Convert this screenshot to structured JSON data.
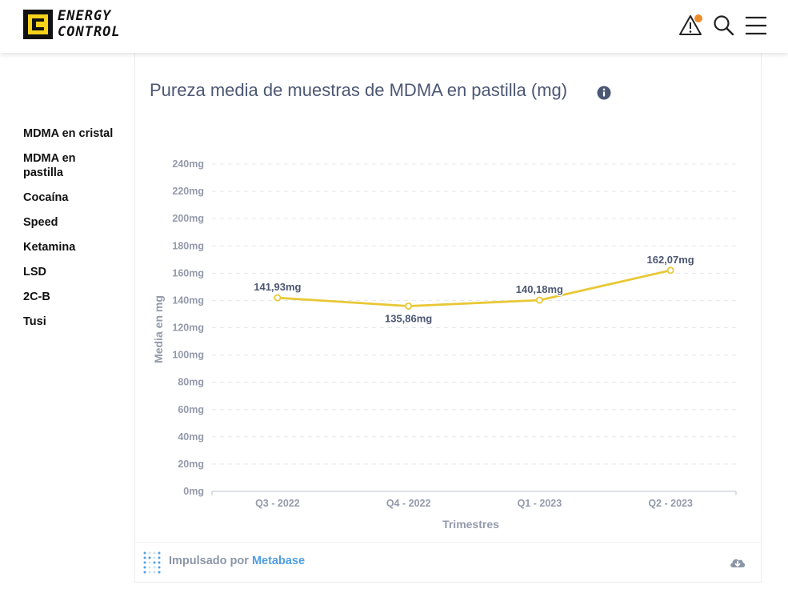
{
  "header": {
    "logo_text_line1": "ENERGY",
    "logo_text_line2": "CONTROL",
    "icons": [
      "alert-icon",
      "search-icon",
      "menu-icon"
    ],
    "accent_color": "#f6d21b",
    "notification_dot_color": "#ef8c2c"
  },
  "sidebar": {
    "items": [
      {
        "label": "MDMA en cristal"
      },
      {
        "label": "MDMA en pastilla"
      },
      {
        "label": "Cocaína"
      },
      {
        "label": "Speed"
      },
      {
        "label": "Ketamina"
      },
      {
        "label": "LSD"
      },
      {
        "label": "2C-B"
      },
      {
        "label": "Tusi"
      }
    ]
  },
  "card": {
    "title": "Pureza media de muestras de MDMA en pastilla (mg)",
    "info_icon": "info-icon"
  },
  "footer": {
    "powered_prefix": "Impulsado por",
    "powered_brand": "Metabase",
    "download_icon": "cloud-download-icon"
  },
  "chart_data": {
    "type": "line",
    "title": "",
    "xlabel": "Trimestres",
    "ylabel": "Media en mg",
    "categories": [
      "Q3 - 2022",
      "Q4 - 2022",
      "Q1 - 2023",
      "Q2 - 2023"
    ],
    "series": [
      {
        "values": [
          141.93,
          135.86,
          140.18,
          162.07
        ],
        "color": "#e8c836"
      }
    ],
    "data_labels": [
      "141,93mg",
      "135,86mg",
      "140,18mg",
      "162,07mg"
    ],
    "yticks": [
      0,
      20,
      40,
      60,
      80,
      100,
      120,
      140,
      160,
      180,
      200,
      220,
      240
    ],
    "ytick_labels": [
      "0mg",
      "20mg",
      "40mg",
      "60mg",
      "80mg",
      "100mg",
      "120mg",
      "140mg",
      "160mg",
      "180mg",
      "200mg",
      "220mg",
      "240mg"
    ],
    "ylim": [
      0,
      240
    ],
    "grid": true,
    "legend": "none"
  }
}
